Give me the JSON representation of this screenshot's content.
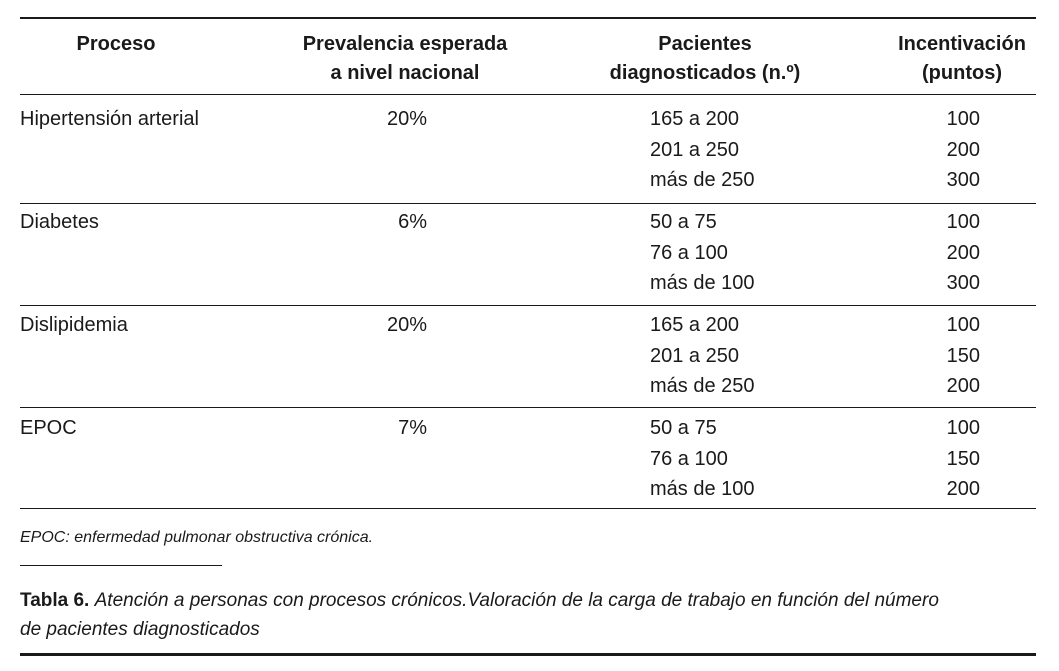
{
  "table": {
    "headers": [
      [
        "Proceso"
      ],
      [
        "Prevalencia esperada",
        "a nivel nacional"
      ],
      [
        "Pacientes",
        "diagnosticados (n.º)"
      ],
      [
        "Incentivación",
        "(puntos)"
      ]
    ],
    "rows": [
      {
        "proceso": "Hipertensión arterial",
        "prevalencia": "20%",
        "pacientes": [
          "165 a 200",
          "201 a 250",
          "más de 250"
        ],
        "puntos": [
          "100",
          "200",
          "300"
        ]
      },
      {
        "proceso": "Diabetes",
        "prevalencia": "6%",
        "pacientes": [
          "50 a 75",
          "76 a 100",
          "más de 100"
        ],
        "puntos": [
          "100",
          "200",
          "300"
        ]
      },
      {
        "proceso": "Dislipidemia",
        "prevalencia": "20%",
        "pacientes": [
          "165 a 200",
          "201 a 250",
          "más de 250"
        ],
        "puntos": [
          "100",
          "150",
          "200"
        ]
      },
      {
        "proceso": "EPOC",
        "prevalencia": "7%",
        "pacientes": [
          "50 a 75",
          "76 a 100",
          "más de 100"
        ],
        "puntos": [
          "100",
          "150",
          "200"
        ]
      }
    ],
    "footnote": "EPOC: enfermedad pulmonar obstructiva crónica."
  },
  "caption": {
    "label": "Tabla 6.",
    "text": "Atención a personas con procesos crónicos.Valoración de la carga de trabajo en función del número",
    "text2": "de pacientes diagnosticados"
  }
}
